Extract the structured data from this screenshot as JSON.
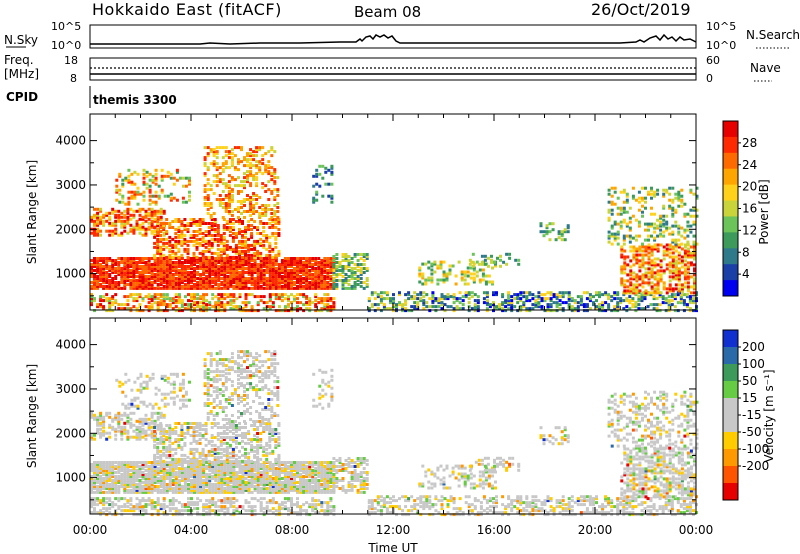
{
  "header": {
    "station": "Hokkaido East (fitACF)",
    "beam": "Beam 08",
    "date": "26/Oct/2019"
  },
  "panels": {
    "nsky_label": "N.Sky",
    "nsky_ticks": [
      "10^5",
      "10^0"
    ],
    "nsearch_label": "N.Search",
    "nsearch_ticks": [
      "10^5",
      "10^0"
    ],
    "freq_label_top": "Freq.",
    "freq_label_bottom": "[MHz]",
    "freq_ticks": [
      "18",
      "8"
    ],
    "nave_label": "Nave",
    "nave_ticks": [
      "60",
      "0"
    ],
    "cpid_label": "CPID",
    "cpid_value": "themis 3300"
  },
  "chart_data": [
    {
      "type": "heatmap",
      "quantity": "power",
      "xlabel": "Time UT",
      "ylabel": "Slant Range [km]",
      "x_ticks": [
        "00:00",
        "04:00",
        "08:00",
        "12:00",
        "16:00",
        "20:00",
        "00:00"
      ],
      "y_ticks": [
        1000,
        2000,
        3000,
        4000
      ],
      "ylim": [
        180,
        4600
      ],
      "colorbar_label": "Power [dB]",
      "colorbar_ticks": [
        4,
        8,
        12,
        16,
        20,
        24,
        28
      ],
      "colorbar_range": [
        0,
        32
      ],
      "palette": [
        "#0000f0",
        "#1a3fa6",
        "#2f7a8a",
        "#3c9a5a",
        "#6cc35a",
        "#c8d43a",
        "#ffd11a",
        "#ffa500",
        "#ff6a00",
        "#ff2a00",
        "#e60000"
      ]
    },
    {
      "type": "heatmap",
      "quantity": "velocity",
      "xlabel": "Time UT",
      "ylabel": "Slant Range [km]",
      "x_ticks": [
        "00:00",
        "04:00",
        "08:00",
        "12:00",
        "16:00",
        "20:00",
        "00:00"
      ],
      "y_ticks": [
        1000,
        2000,
        3000,
        4000
      ],
      "ylim": [
        180,
        4600
      ],
      "colorbar_label": "Velocity [m s⁻¹]",
      "colorbar_ticks": [
        200,
        100,
        50,
        15,
        -15,
        -50,
        -100,
        -200
      ],
      "palette": [
        "#1030d0",
        "#2a6aa8",
        "#3c9a5a",
        "#66cc44",
        "#c8c8c8",
        "#c8c8c8",
        "#ffcc00",
        "#ff9900",
        "#ff5500",
        "#e60000"
      ]
    }
  ]
}
